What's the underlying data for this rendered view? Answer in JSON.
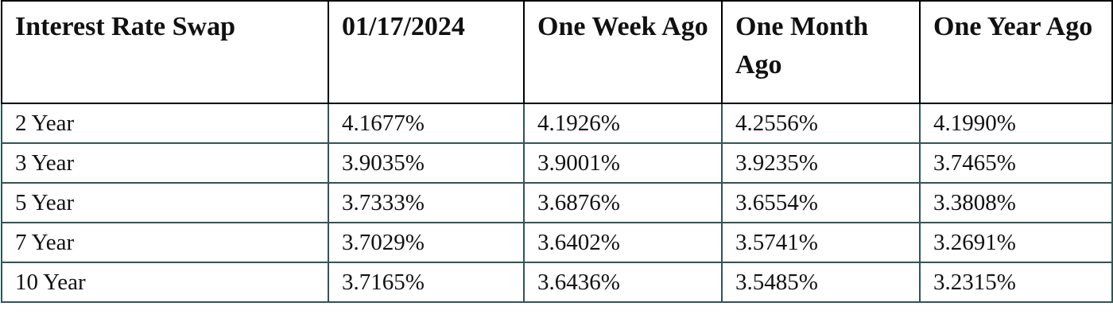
{
  "table": {
    "headers": [
      "Interest Rate Swap",
      "01/17/2024",
      "One Week Ago",
      "One Month Ago",
      "One Year Ago"
    ],
    "rows": [
      [
        "2 Year",
        "4.1677%",
        "4.1926%",
        "4.2556%",
        "4.1990%"
      ],
      [
        "3 Year",
        "3.9035%",
        "3.9001%",
        "3.9235%",
        "3.7465%"
      ],
      [
        "5 Year",
        "3.7333%",
        "3.6876%",
        "3.6554%",
        "3.3808%"
      ],
      [
        "7 Year",
        "3.7029%",
        "3.6402%",
        "3.5741%",
        "3.2691%"
      ],
      [
        "10 Year",
        "3.7165%",
        "3.6436%",
        "3.5485%",
        "3.2315%"
      ]
    ],
    "header_border_color": "#000000",
    "body_border_color": "#2f5555"
  }
}
